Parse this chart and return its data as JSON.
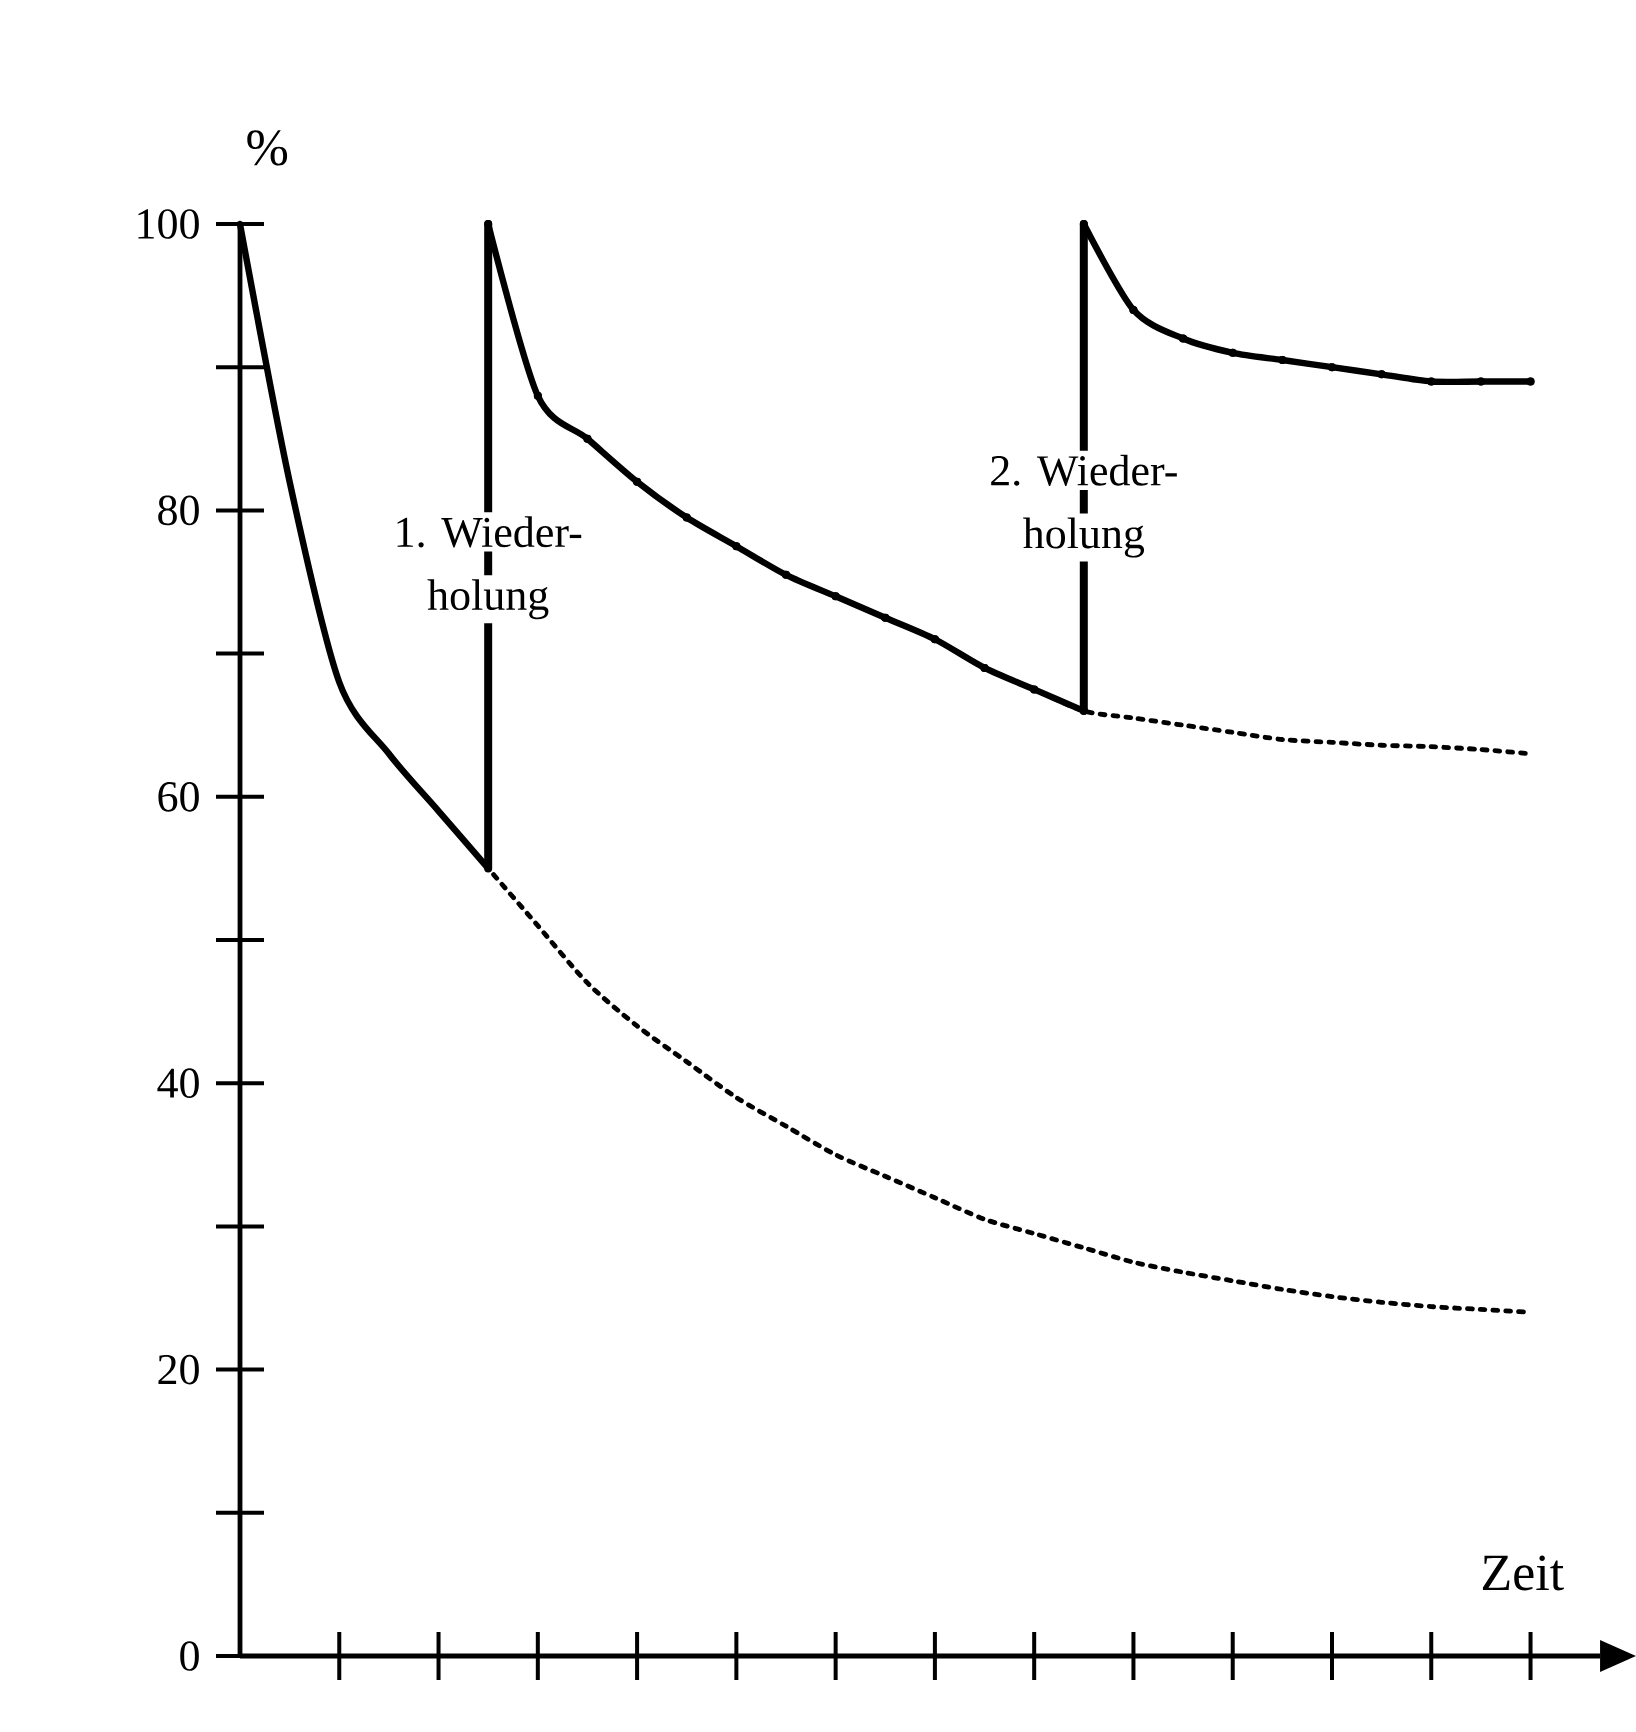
{
  "chart_data": {
    "type": "line",
    "ylabel": "%",
    "xlabel": "Zeit",
    "categories": [
      null,
      null,
      null,
      null,
      null,
      null,
      null,
      null,
      null,
      null,
      null,
      null,
      null,
      null,
      null,
      null,
      null,
      null,
      null,
      null,
      null,
      null,
      null,
      null,
      null,
      null,
      null
    ],
    "ylim": [
      0,
      100
    ],
    "yticks": [
      0,
      20,
      40,
      60,
      80,
      100
    ],
    "marker": "none",
    "series": [
      {
        "color": "#000000",
        "line_style": "dotted",
        "values": [
          100,
          82,
          68,
          63,
          59,
          55,
          51,
          47,
          44,
          41.5,
          39,
          37,
          35,
          33.5,
          32,
          30.5,
          29.5,
          28.5,
          27.5,
          26.8,
          26.2,
          25.6,
          25.1,
          24.7,
          24.4,
          24.2,
          24
        ]
      },
      {
        "color": "#000000",
        "line_style": "solid",
        "values": [
          100,
          82,
          68,
          63,
          59,
          55,
          null,
          null,
          null,
          null,
          null,
          null,
          null,
          null,
          null,
          null,
          null,
          null,
          null,
          null,
          null,
          null,
          null,
          null,
          null,
          null,
          null
        ]
      },
      {
        "color": "#000000",
        "line_style": "dotted",
        "values": [
          null,
          null,
          null,
          null,
          null,
          100,
          88,
          85,
          82,
          79.5,
          77.5,
          75.5,
          74,
          72.5,
          71,
          69,
          67.5,
          66,
          65.5,
          65,
          64.5,
          64,
          63.8,
          63.6,
          63.5,
          63.3,
          63
        ]
      },
      {
        "color": "#000000",
        "line_style": "solid",
        "values": [
          null,
          null,
          null,
          null,
          null,
          100,
          88,
          85,
          82,
          79.5,
          77.5,
          75.5,
          74,
          72.5,
          71,
          69,
          67.5,
          66,
          null,
          null,
          null,
          null,
          null,
          null,
          null,
          null,
          null
        ],
        "errors": [
          null,
          null,
          null,
          null,
          null,
          [
            55,
            100
          ],
          null,
          null,
          null,
          null,
          null,
          null,
          null,
          null,
          null,
          null,
          null,
          null,
          null,
          null,
          null,
          null,
          null,
          null,
          null,
          null,
          null
        ]
      },
      {
        "color": "#000000",
        "line_style": "solid",
        "values": [
          null,
          null,
          null,
          null,
          null,
          null,
          null,
          null,
          null,
          null,
          null,
          null,
          null,
          null,
          null,
          null,
          null,
          100,
          94,
          92,
          91,
          90.5,
          90,
          89.5,
          89,
          89,
          89
        ],
        "errors": [
          null,
          null,
          null,
          null,
          null,
          null,
          null,
          null,
          null,
          null,
          null,
          null,
          null,
          null,
          null,
          null,
          null,
          [
            66,
            100
          ],
          null,
          null,
          null,
          null,
          null,
          null,
          null,
          null,
          null
        ]
      }
    ],
    "annotations": [
      "1. Wieder-",
      "holung",
      "2. Wieder-",
      "holung"
    ]
  }
}
